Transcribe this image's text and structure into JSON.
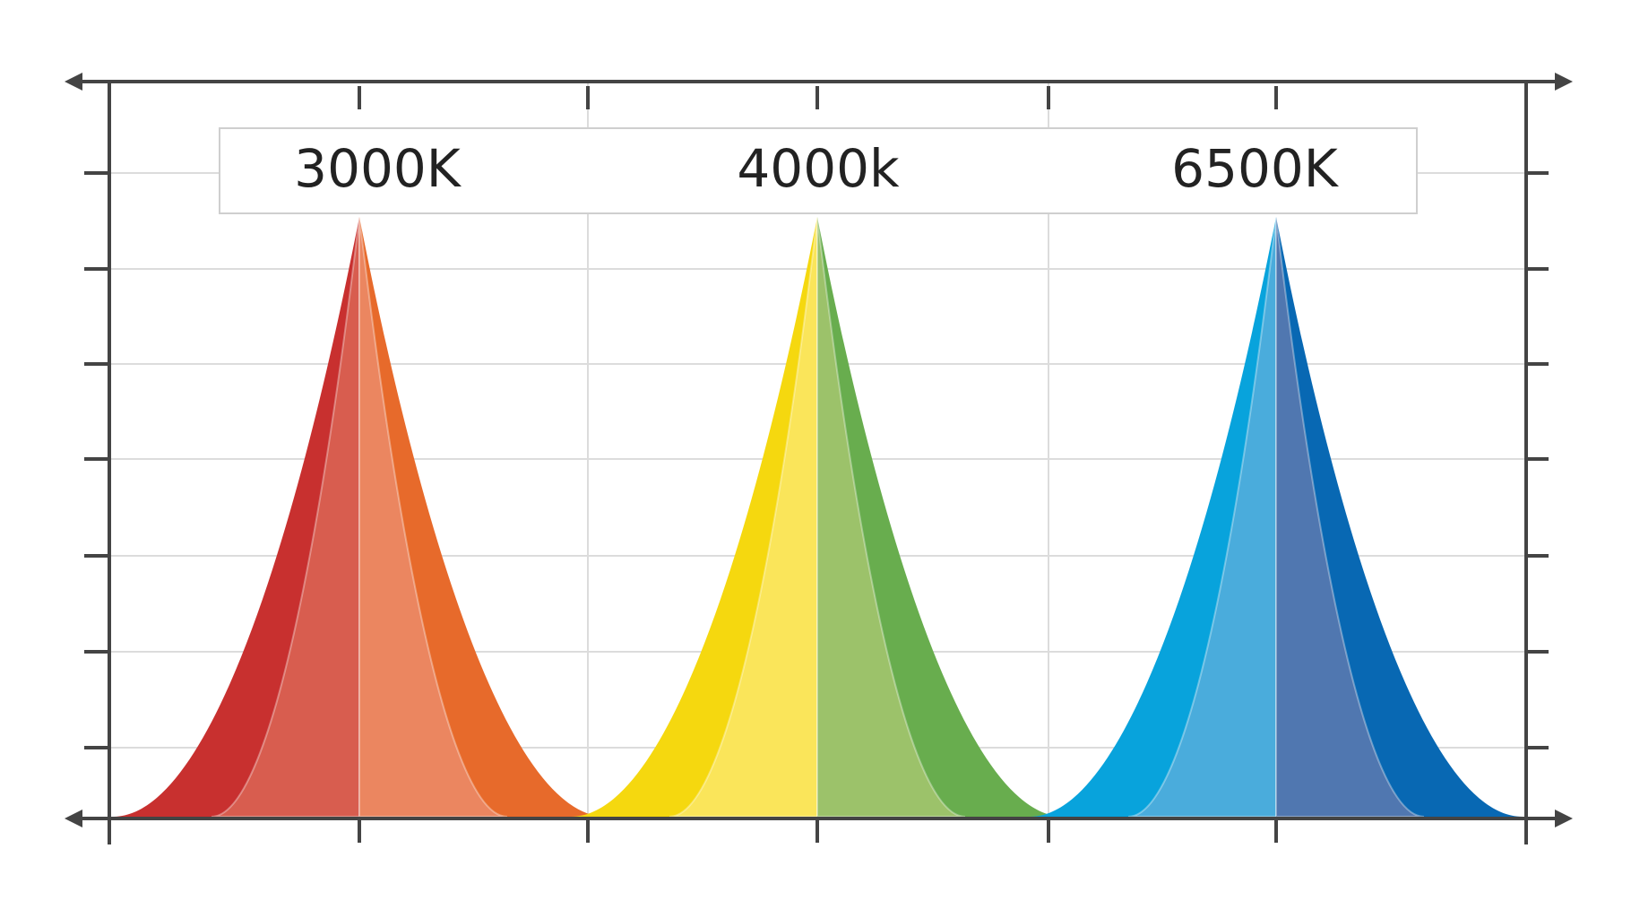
{
  "labels": [
    "3000K",
    "4000k",
    "6500K"
  ]
}
